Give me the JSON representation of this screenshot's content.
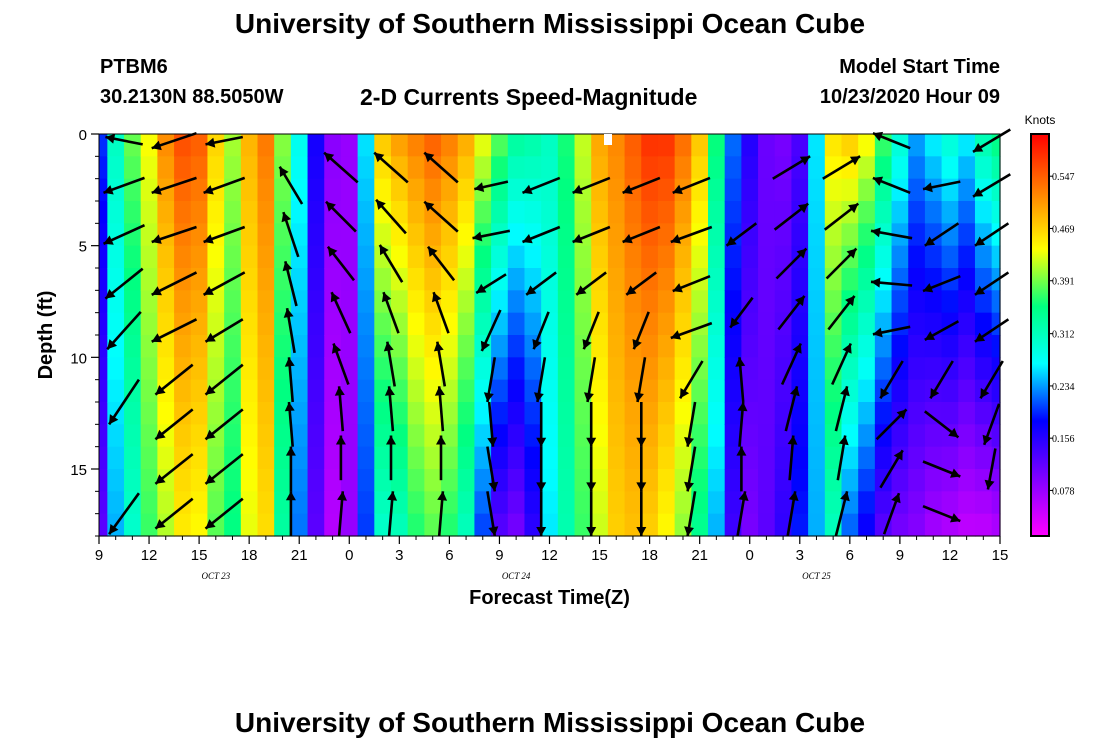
{
  "header": {
    "title": "University of Southern Mississippi Ocean Cube",
    "station_id": "PTBM6",
    "station_location": "30.2130N 88.5050W",
    "plot_title": "2-D Currents Speed-Magnitude",
    "model_label": "Model Start Time",
    "model_start": "10/23/2020 Hour 09"
  },
  "footer": {
    "title": "University of Southern Mississippi Ocean Cube"
  },
  "chart_data": {
    "type": "heatmap",
    "title": "2-D Currents Speed-Magnitude",
    "xlabel": "Forecast Time(Z)",
    "ylabel": "Depth (ft)",
    "x_ticks": [
      "9",
      "12",
      "15",
      "18",
      "21",
      "0",
      "3",
      "6",
      "9",
      "12",
      "15",
      "18",
      "21",
      "0",
      "3",
      "6",
      "9",
      "12",
      "15"
    ],
    "date_labels": [
      "OCT 23",
      "OCT 24",
      "OCT 25"
    ],
    "y_ticks": [
      0,
      5,
      10,
      15
    ],
    "ylim": [
      0,
      18
    ],
    "x_range_hours": [
      0,
      54
    ],
    "colorbar": {
      "unit": "Knots",
      "ticks": [
        "0.547",
        "0.469",
        "0.391",
        "0.312",
        "0.234",
        "0.156",
        "0.078"
      ],
      "range": [
        0.01,
        0.61
      ],
      "colors": [
        "#ff00ff",
        "#8000ff",
        "#0000ff",
        "#00ffff",
        "#00ff80",
        "#ffff00",
        "#ff8000",
        "#ff0000"
      ]
    },
    "hours": [
      0,
      1,
      2,
      3,
      4,
      5,
      6,
      7,
      8,
      9,
      10,
      11,
      12,
      13,
      14,
      15,
      16,
      17,
      18,
      19,
      20,
      21,
      22,
      23,
      24,
      25,
      26,
      27,
      28,
      29,
      30,
      31,
      32,
      33,
      34,
      35,
      36,
      37,
      38,
      39,
      40,
      41,
      42,
      43,
      44,
      45,
      46,
      47,
      48,
      49,
      50,
      51,
      52,
      53,
      54
    ],
    "speed_surface_knots": [
      0.2,
      0.31,
      0.39,
      0.44,
      0.52,
      0.56,
      0.55,
      0.47,
      0.41,
      0.49,
      0.53,
      0.4,
      0.28,
      0.17,
      0.09,
      0.08,
      0.26,
      0.48,
      0.51,
      0.53,
      0.55,
      0.53,
      0.5,
      0.44,
      0.39,
      0.34,
      0.33,
      0.31,
      0.36,
      0.42,
      0.5,
      0.52,
      0.55,
      0.58,
      0.58,
      0.54,
      0.48,
      0.36,
      0.22,
      0.16,
      0.11,
      0.1,
      0.13,
      0.26,
      0.46,
      0.48,
      0.45,
      0.38,
      0.3,
      0.24,
      0.27,
      0.3,
      0.27,
      0.33,
      0.36
    ],
    "speed_bottom_knots": [
      0.12,
      0.24,
      0.3,
      0.37,
      0.41,
      0.45,
      0.44,
      0.38,
      0.35,
      0.43,
      0.46,
      0.33,
      0.22,
      0.12,
      0.06,
      0.08,
      0.2,
      0.3,
      0.31,
      0.36,
      0.38,
      0.36,
      0.31,
      0.2,
      0.12,
      0.1,
      0.15,
      0.26,
      0.32,
      0.37,
      0.42,
      0.47,
      0.48,
      0.47,
      0.44,
      0.4,
      0.34,
      0.24,
      0.14,
      0.1,
      0.12,
      0.15,
      0.19,
      0.24,
      0.31,
      0.21,
      0.17,
      0.12,
      0.1,
      0.09,
      0.07,
      0.06,
      0.05,
      0.05,
      0.06
    ],
    "velocity_vectors_knots": [
      {
        "x": 1.5,
        "depth": 0.3,
        "u": -0.5,
        "v": 0.1
      },
      {
        "x": 1.5,
        "depth": 2.3,
        "u": -0.55,
        "v": -0.2
      },
      {
        "x": 1.5,
        "depth": 4.5,
        "u": -0.55,
        "v": -0.25
      },
      {
        "x": 1.5,
        "depth": 6.7,
        "u": -0.5,
        "v": -0.4
      },
      {
        "x": 1.5,
        "depth": 8.8,
        "u": -0.45,
        "v": -0.5
      },
      {
        "x": 1.5,
        "depth": 12.0,
        "u": -0.4,
        "v": -0.6
      },
      {
        "x": 1.5,
        "depth": 17.0,
        "u": -0.4,
        "v": -0.55
      },
      {
        "x": 4.5,
        "depth": 0.3,
        "u": -0.6,
        "v": -0.2
      },
      {
        "x": 4.5,
        "depth": 2.3,
        "u": -0.6,
        "v": -0.2
      },
      {
        "x": 4.5,
        "depth": 4.5,
        "u": -0.6,
        "v": -0.2
      },
      {
        "x": 4.5,
        "depth": 6.7,
        "u": -0.6,
        "v": -0.3
      },
      {
        "x": 4.5,
        "depth": 8.8,
        "u": -0.6,
        "v": -0.3
      },
      {
        "x": 4.5,
        "depth": 11.0,
        "u": -0.5,
        "v": -0.4
      },
      {
        "x": 4.5,
        "depth": 13.0,
        "u": -0.5,
        "v": -0.4
      },
      {
        "x": 4.5,
        "depth": 15.0,
        "u": -0.5,
        "v": -0.4
      },
      {
        "x": 4.5,
        "depth": 17.0,
        "u": -0.5,
        "v": -0.4
      },
      {
        "x": 7.5,
        "depth": 0.3,
        "u": -0.5,
        "v": -0.1
      },
      {
        "x": 7.5,
        "depth": 2.3,
        "u": -0.55,
        "v": -0.2
      },
      {
        "x": 7.5,
        "depth": 4.5,
        "u": -0.55,
        "v": -0.2
      },
      {
        "x": 7.5,
        "depth": 6.7,
        "u": -0.55,
        "v": -0.3
      },
      {
        "x": 7.5,
        "depth": 8.8,
        "u": -0.5,
        "v": -0.3
      },
      {
        "x": 7.5,
        "depth": 11.0,
        "u": -0.5,
        "v": -0.4
      },
      {
        "x": 7.5,
        "depth": 13.0,
        "u": -0.5,
        "v": -0.4
      },
      {
        "x": 7.5,
        "depth": 15.0,
        "u": -0.5,
        "v": -0.4
      },
      {
        "x": 7.5,
        "depth": 17.0,
        "u": -0.5,
        "v": -0.4
      },
      {
        "x": 11.5,
        "depth": 2.3,
        "u": -0.3,
        "v": 0.5
      },
      {
        "x": 11.5,
        "depth": 4.5,
        "u": -0.2,
        "v": 0.6
      },
      {
        "x": 11.5,
        "depth": 6.7,
        "u": -0.15,
        "v": 0.6
      },
      {
        "x": 11.5,
        "depth": 8.8,
        "u": -0.1,
        "v": 0.6
      },
      {
        "x": 11.5,
        "depth": 11.0,
        "u": -0.05,
        "v": 0.6
      },
      {
        "x": 11.5,
        "depth": 13.0,
        "u": -0.05,
        "v": 0.6
      },
      {
        "x": 11.5,
        "depth": 15.0,
        "u": 0.0,
        "v": 0.6
      },
      {
        "x": 11.5,
        "depth": 17.0,
        "u": 0.0,
        "v": 0.6
      },
      {
        "x": 14.5,
        "depth": 1.5,
        "u": -0.45,
        "v": 0.4
      },
      {
        "x": 14.5,
        "depth": 3.7,
        "u": -0.4,
        "v": 0.4
      },
      {
        "x": 14.5,
        "depth": 5.8,
        "u": -0.35,
        "v": 0.45
      },
      {
        "x": 14.5,
        "depth": 8.0,
        "u": -0.25,
        "v": 0.55
      },
      {
        "x": 14.5,
        "depth": 10.3,
        "u": -0.2,
        "v": 0.55
      },
      {
        "x": 14.5,
        "depth": 12.3,
        "u": -0.05,
        "v": 0.6
      },
      {
        "x": 14.5,
        "depth": 14.5,
        "u": 0.0,
        "v": 0.6
      },
      {
        "x": 14.5,
        "depth": 17.0,
        "u": 0.05,
        "v": 0.6
      },
      {
        "x": 17.5,
        "depth": 1.5,
        "u": -0.45,
        "v": 0.4
      },
      {
        "x": 17.5,
        "depth": 3.7,
        "u": -0.4,
        "v": 0.45
      },
      {
        "x": 17.5,
        "depth": 5.8,
        "u": -0.3,
        "v": 0.5
      },
      {
        "x": 17.5,
        "depth": 8.0,
        "u": -0.2,
        "v": 0.55
      },
      {
        "x": 17.5,
        "depth": 10.3,
        "u": -0.1,
        "v": 0.6
      },
      {
        "x": 17.5,
        "depth": 12.3,
        "u": -0.05,
        "v": 0.6
      },
      {
        "x": 17.5,
        "depth": 14.5,
        "u": 0.0,
        "v": 0.6
      },
      {
        "x": 17.5,
        "depth": 17.0,
        "u": 0.05,
        "v": 0.6
      },
      {
        "x": 20.5,
        "depth": 1.5,
        "u": -0.45,
        "v": 0.4
      },
      {
        "x": 20.5,
        "depth": 3.7,
        "u": -0.45,
        "v": 0.4
      },
      {
        "x": 20.5,
        "depth": 5.8,
        "u": -0.35,
        "v": 0.45
      },
      {
        "x": 20.5,
        "depth": 8.0,
        "u": -0.2,
        "v": 0.55
      },
      {
        "x": 20.5,
        "depth": 10.3,
        "u": -0.1,
        "v": 0.6
      },
      {
        "x": 20.5,
        "depth": 12.3,
        "u": -0.05,
        "v": 0.6
      },
      {
        "x": 20.5,
        "depth": 14.5,
        "u": 0.0,
        "v": 0.6
      },
      {
        "x": 20.5,
        "depth": 17.0,
        "u": 0.05,
        "v": 0.6
      },
      {
        "x": 23.5,
        "depth": 2.3,
        "u": -0.45,
        "v": -0.1
      },
      {
        "x": 23.5,
        "depth": 4.5,
        "u": -0.5,
        "v": -0.1
      },
      {
        "x": 23.5,
        "depth": 6.7,
        "u": -0.4,
        "v": -0.25
      },
      {
        "x": 23.5,
        "depth": 8.8,
        "u": -0.25,
        "v": -0.55
      },
      {
        "x": 23.5,
        "depth": 11.0,
        "u": -0.1,
        "v": -0.6
      },
      {
        "x": 23.5,
        "depth": 13.0,
        "u": 0.05,
        "v": -0.6
      },
      {
        "x": 23.5,
        "depth": 15.0,
        "u": 0.1,
        "v": -0.6
      },
      {
        "x": 23.5,
        "depth": 17.0,
        "u": 0.1,
        "v": -0.6
      },
      {
        "x": 26.5,
        "depth": 2.3,
        "u": -0.5,
        "v": -0.2
      },
      {
        "x": 26.5,
        "depth": 4.5,
        "u": -0.5,
        "v": -0.2
      },
      {
        "x": 26.5,
        "depth": 6.7,
        "u": -0.4,
        "v": -0.3
      },
      {
        "x": 26.5,
        "depth": 8.8,
        "u": -0.2,
        "v": -0.5
      },
      {
        "x": 26.5,
        "depth": 11.0,
        "u": -0.1,
        "v": -0.6
      },
      {
        "x": 26.5,
        "depth": 13.0,
        "u": 0.0,
        "v": -0.6
      },
      {
        "x": 26.5,
        "depth": 15.0,
        "u": 0.0,
        "v": -0.6
      },
      {
        "x": 26.5,
        "depth": 17.0,
        "u": 0.0,
        "v": -0.6
      },
      {
        "x": 29.5,
        "depth": 2.3,
        "u": -0.5,
        "v": -0.2
      },
      {
        "x": 29.5,
        "depth": 4.5,
        "u": -0.5,
        "v": -0.2
      },
      {
        "x": 29.5,
        "depth": 6.7,
        "u": -0.4,
        "v": -0.3
      },
      {
        "x": 29.5,
        "depth": 8.8,
        "u": -0.2,
        "v": -0.5
      },
      {
        "x": 29.5,
        "depth": 11.0,
        "u": -0.1,
        "v": -0.6
      },
      {
        "x": 29.5,
        "depth": 13.0,
        "u": 0.0,
        "v": -0.6
      },
      {
        "x": 29.5,
        "depth": 15.0,
        "u": 0.0,
        "v": -0.6
      },
      {
        "x": 29.5,
        "depth": 17.0,
        "u": 0.0,
        "v": -0.6
      },
      {
        "x": 32.5,
        "depth": 2.3,
        "u": -0.5,
        "v": -0.2
      },
      {
        "x": 32.5,
        "depth": 4.5,
        "u": -0.5,
        "v": -0.2
      },
      {
        "x": 32.5,
        "depth": 6.7,
        "u": -0.4,
        "v": -0.3
      },
      {
        "x": 32.5,
        "depth": 8.8,
        "u": -0.2,
        "v": -0.5
      },
      {
        "x": 32.5,
        "depth": 11.0,
        "u": -0.1,
        "v": -0.6
      },
      {
        "x": 32.5,
        "depth": 13.0,
        "u": 0.0,
        "v": -0.6
      },
      {
        "x": 32.5,
        "depth": 15.0,
        "u": 0.0,
        "v": -0.6
      },
      {
        "x": 32.5,
        "depth": 17.0,
        "u": 0.0,
        "v": -0.6
      },
      {
        "x": 35.5,
        "depth": 2.3,
        "u": -0.5,
        "v": -0.2
      },
      {
        "x": 35.5,
        "depth": 4.5,
        "u": -0.55,
        "v": -0.2
      },
      {
        "x": 35.5,
        "depth": 6.7,
        "u": -0.5,
        "v": -0.2
      },
      {
        "x": 35.5,
        "depth": 8.8,
        "u": -0.55,
        "v": -0.2
      },
      {
        "x": 35.5,
        "depth": 11.0,
        "u": -0.3,
        "v": -0.5
      },
      {
        "x": 35.5,
        "depth": 13.0,
        "u": -0.1,
        "v": -0.6
      },
      {
        "x": 35.5,
        "depth": 15.0,
        "u": -0.1,
        "v": -0.6
      },
      {
        "x": 35.5,
        "depth": 17.0,
        "u": -0.1,
        "v": -0.6
      },
      {
        "x": 38.5,
        "depth": 4.5,
        "u": -0.4,
        "v": -0.3
      },
      {
        "x": 38.5,
        "depth": 8.0,
        "u": -0.3,
        "v": -0.4
      },
      {
        "x": 38.5,
        "depth": 11.0,
        "u": -0.05,
        "v": 0.6
      },
      {
        "x": 38.5,
        "depth": 13.0,
        "u": 0.05,
        "v": 0.6
      },
      {
        "x": 38.5,
        "depth": 15.0,
        "u": 0.0,
        "v": 0.6
      },
      {
        "x": 38.5,
        "depth": 17.0,
        "u": 0.1,
        "v": 0.6
      },
      {
        "x": 41.5,
        "depth": 1.5,
        "u": 0.5,
        "v": 0.3
      },
      {
        "x": 41.5,
        "depth": 3.7,
        "u": 0.45,
        "v": 0.35
      },
      {
        "x": 41.5,
        "depth": 5.8,
        "u": 0.4,
        "v": 0.4
      },
      {
        "x": 41.5,
        "depth": 8.0,
        "u": 0.35,
        "v": 0.45
      },
      {
        "x": 41.5,
        "depth": 10.3,
        "u": 0.25,
        "v": 0.55
      },
      {
        "x": 41.5,
        "depth": 12.3,
        "u": 0.15,
        "v": 0.6
      },
      {
        "x": 41.5,
        "depth": 14.5,
        "u": 0.05,
        "v": 0.6
      },
      {
        "x": 41.5,
        "depth": 17.0,
        "u": 0.1,
        "v": 0.6
      },
      {
        "x": 44.5,
        "depth": 1.5,
        "u": 0.5,
        "v": 0.3
      },
      {
        "x": 44.5,
        "depth": 3.7,
        "u": 0.45,
        "v": 0.35
      },
      {
        "x": 44.5,
        "depth": 5.8,
        "u": 0.4,
        "v": 0.4
      },
      {
        "x": 44.5,
        "depth": 8.0,
        "u": 0.35,
        "v": 0.45
      },
      {
        "x": 44.5,
        "depth": 10.3,
        "u": 0.25,
        "v": 0.55
      },
      {
        "x": 44.5,
        "depth": 12.3,
        "u": 0.15,
        "v": 0.6
      },
      {
        "x": 44.5,
        "depth": 14.5,
        "u": 0.1,
        "v": 0.6
      },
      {
        "x": 44.5,
        "depth": 17.0,
        "u": 0.15,
        "v": 0.6
      },
      {
        "x": 47.5,
        "depth": 0.3,
        "u": -0.5,
        "v": 0.2
      },
      {
        "x": 47.5,
        "depth": 2.3,
        "u": -0.5,
        "v": 0.2
      },
      {
        "x": 47.5,
        "depth": 4.5,
        "u": -0.55,
        "v": 0.1
      },
      {
        "x": 47.5,
        "depth": 6.7,
        "u": -0.55,
        "v": 0.05
      },
      {
        "x": 47.5,
        "depth": 8.8,
        "u": -0.5,
        "v": -0.1
      },
      {
        "x": 47.5,
        "depth": 11.0,
        "u": -0.3,
        "v": -0.5
      },
      {
        "x": 47.5,
        "depth": 13.0,
        "u": 0.4,
        "v": 0.4
      },
      {
        "x": 47.5,
        "depth": 15.0,
        "u": 0.3,
        "v": 0.5
      },
      {
        "x": 47.5,
        "depth": 17.0,
        "u": 0.2,
        "v": 0.55
      },
      {
        "x": 50.5,
        "depth": 2.3,
        "u": -0.5,
        "v": -0.1
      },
      {
        "x": 50.5,
        "depth": 4.5,
        "u": -0.45,
        "v": -0.3
      },
      {
        "x": 50.5,
        "depth": 6.7,
        "u": -0.5,
        "v": -0.2
      },
      {
        "x": 50.5,
        "depth": 8.8,
        "u": -0.45,
        "v": -0.25
      },
      {
        "x": 50.5,
        "depth": 11.0,
        "u": -0.3,
        "v": -0.5
      },
      {
        "x": 50.5,
        "depth": 13.0,
        "u": 0.45,
        "v": -0.35
      },
      {
        "x": 50.5,
        "depth": 15.0,
        "u": 0.5,
        "v": -0.2
      },
      {
        "x": 50.5,
        "depth": 17.0,
        "u": 0.5,
        "v": -0.2
      },
      {
        "x": 53.5,
        "depth": 0.3,
        "u": -0.5,
        "v": -0.3
      },
      {
        "x": 53.5,
        "depth": 2.3,
        "u": -0.5,
        "v": -0.3
      },
      {
        "x": 53.5,
        "depth": 4.5,
        "u": -0.45,
        "v": -0.3
      },
      {
        "x": 53.5,
        "depth": 6.7,
        "u": -0.45,
        "v": -0.3
      },
      {
        "x": 53.5,
        "depth": 8.8,
        "u": -0.45,
        "v": -0.3
      },
      {
        "x": 53.5,
        "depth": 11.0,
        "u": -0.3,
        "v": -0.5
      },
      {
        "x": 53.5,
        "depth": 13.0,
        "u": -0.2,
        "v": -0.55
      },
      {
        "x": 53.5,
        "depth": 15.0,
        "u": -0.1,
        "v": -0.55
      }
    ]
  }
}
